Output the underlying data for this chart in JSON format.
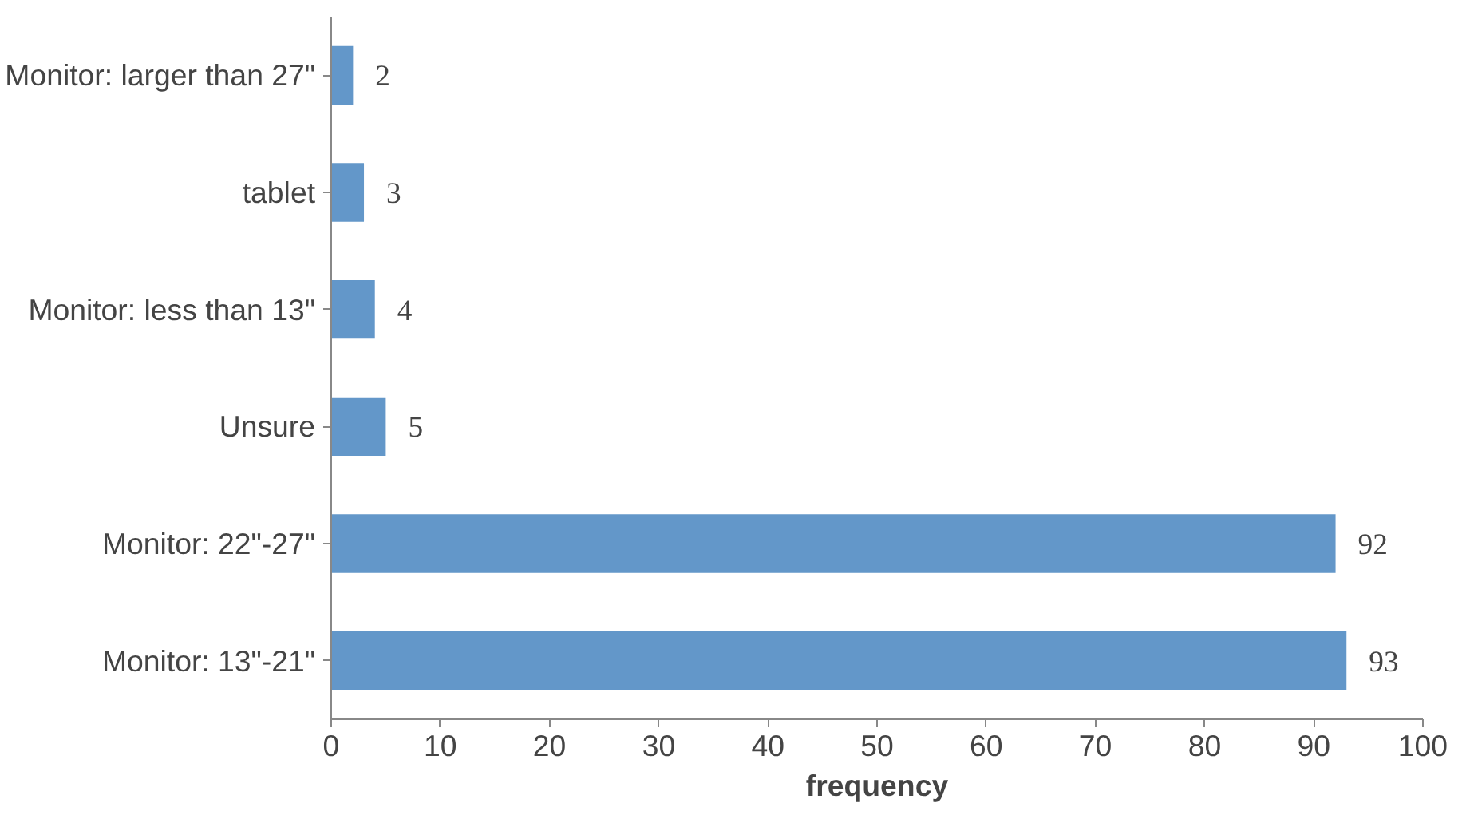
{
  "chart_data": {
    "type": "bar",
    "orientation": "horizontal",
    "xlabel": "frequency",
    "categories": [
      "Monitor: larger than 27\"",
      "tablet",
      "Monitor: less than 13\"",
      "Unsure",
      "Monitor: 22\"-27\"",
      "Monitor: 13\"-21\""
    ],
    "values": [
      2,
      3,
      4,
      5,
      92,
      93
    ],
    "color": "#6397c9",
    "xlim": [
      0,
      100
    ],
    "xticks": [
      0,
      10,
      20,
      30,
      40,
      50,
      60,
      70,
      80,
      90,
      100
    ],
    "grid": false,
    "data_labels": true
  }
}
